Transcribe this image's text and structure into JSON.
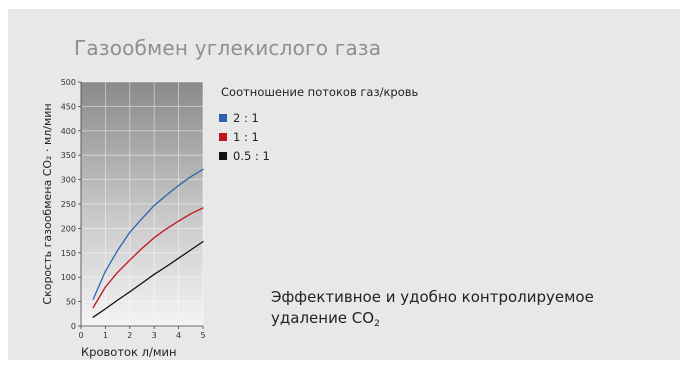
{
  "title": "Газообмен углекислого газа",
  "legend_title": "Соотношение потоков газ/кровь",
  "note": {
    "line1": "Эффективное и удобно контролируемое",
    "line2_prefix": "удаление CO",
    "line2_sub": "2"
  },
  "chart_data": {
    "type": "line",
    "xlabel": "Кровоток л/мин",
    "ylabel": "Скорость газообмена CO₂ · мл/мин",
    "xlim": [
      0,
      5
    ],
    "ylim": [
      0,
      500
    ],
    "x_ticks": [
      0,
      1,
      2,
      3,
      4,
      5
    ],
    "y_ticks": [
      0,
      50,
      100,
      150,
      200,
      250,
      300,
      350,
      400,
      450,
      500
    ],
    "grid": true,
    "legend_position": "right",
    "series": [
      {
        "name": "2 : 1",
        "color": "#2b64ad",
        "x": [
          0.5,
          1,
          1.5,
          2,
          2.5,
          3,
          3.5,
          4,
          4.5,
          5
        ],
        "y": [
          55,
          112,
          155,
          192,
          220,
          247,
          268,
          288,
          306,
          321
        ]
      },
      {
        "name": "1 : 1",
        "color": "#c0141c",
        "x": [
          0.5,
          1,
          1.5,
          2,
          2.5,
          3,
          3.5,
          4,
          4.5,
          5
        ],
        "y": [
          38,
          80,
          110,
          135,
          159,
          181,
          199,
          215,
          230,
          242
        ]
      },
      {
        "name": "0.5 : 1",
        "color": "#111111",
        "x": [
          0.5,
          1,
          1.5,
          2,
          2.5,
          3,
          3.5,
          4,
          4.5,
          5
        ],
        "y": [
          18,
          35,
          53,
          70,
          88,
          106,
          122,
          139,
          156,
          173
        ]
      }
    ]
  }
}
